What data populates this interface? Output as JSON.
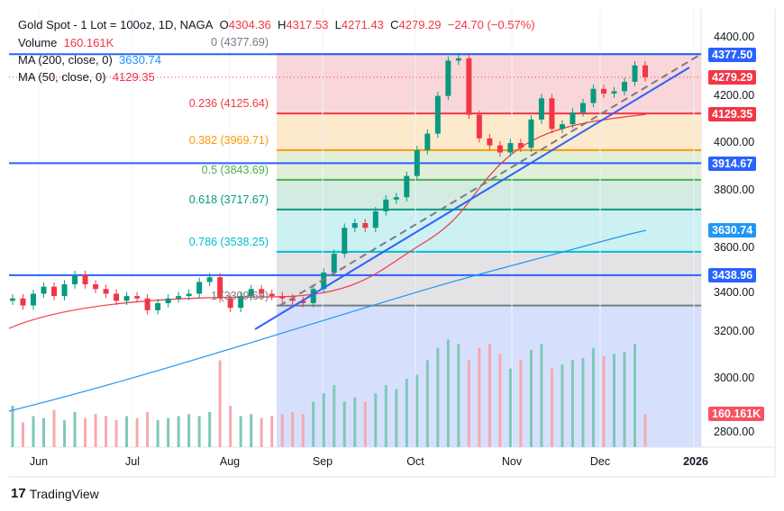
{
  "header": {
    "symbol": "Gold Spot - 1 Lot = 100oz, 1D, NAGA",
    "o_label": "O",
    "open": "4304.36",
    "h_label": "H",
    "high": "4317.53",
    "l_label": "L",
    "low": "4271.43",
    "c_label": "C",
    "close": "4279.29",
    "change": "−24.70 (−0.57%)"
  },
  "volume_legend": {
    "label": "Volume",
    "value": "160.161K"
  },
  "ma200": {
    "label": "MA (200, close, 0)",
    "value": "3630.74"
  },
  "ma50": {
    "label": "MA (50, close, 0)",
    "value": "4129.35"
  },
  "colors": {
    "up": "#089981",
    "down": "#f23645",
    "ma200": "#2196f3",
    "ma50": "#f23645",
    "hline": "#2962ff"
  },
  "fib_labels": [
    "0 (4377.69)",
    "0.236 (4125.64)",
    "0.382 (3969.71)",
    "0.5 (3843.69)",
    "0.618 (3717.67)",
    "0.786 (3538.25)",
    "1 (3309.69)"
  ],
  "price_labels": {
    "l4377": "4377.50",
    "last": "4279.29",
    "ma50": "4129.35",
    "l3914": "3914.67",
    "ma200": "3630.74",
    "l3438": "3438.96",
    "vol": "160.161K"
  },
  "logo": "TradingView",
  "chart_data": {
    "type": "candlestick",
    "title": "Gold Spot - 1 Lot = 100oz, 1D, NAGA",
    "x_ticks": [
      "Jun",
      "Jul",
      "Aug",
      "Sep",
      "Oct",
      "Nov",
      "Dec",
      "2026"
    ],
    "y_ticks": [
      "4400.00",
      "4200.00",
      "4000.00",
      "3800.00",
      "3600.00",
      "3400.00",
      "3200.00",
      "3000.00",
      "2800.00"
    ],
    "ylim": [
      2700,
      4450
    ],
    "closes": [
      3340,
      3310,
      3360,
      3390,
      3350,
      3400,
      3440,
      3400,
      3380,
      3360,
      3330,
      3350,
      3340,
      3290,
      3320,
      3340,
      3350,
      3360,
      3410,
      3430,
      3340,
      3300,
      3350,
      3380,
      3360,
      3350,
      3340,
      3330,
      3320,
      3380,
      3450,
      3530,
      3640,
      3660,
      3640,
      3710,
      3760,
      3770,
      3860,
      3970,
      4040,
      4200,
      4350,
      4360,
      4120,
      4020,
      3990,
      3960,
      4000,
      3980,
      4100,
      4190,
      4060,
      4080,
      4130,
      4170,
      4230,
      4210,
      4220,
      4260,
      4330,
      4279.29
    ],
    "volume_k": [
      200,
      120,
      150,
      140,
      180,
      130,
      170,
      140,
      160,
      150,
      130,
      150,
      140,
      170,
      130,
      140,
      150,
      160,
      150,
      170,
      420,
      200,
      150,
      160,
      140,
      150,
      160,
      170,
      160,
      220,
      260,
      300,
      220,
      240,
      220,
      260,
      300,
      280,
      330,
      350,
      420,
      480,
      520,
      500,
      420,
      480,
      500,
      450,
      380,
      420,
      470,
      500,
      380,
      400,
      420,
      430,
      480,
      440,
      450,
      460,
      500,
      160
    ]
  }
}
